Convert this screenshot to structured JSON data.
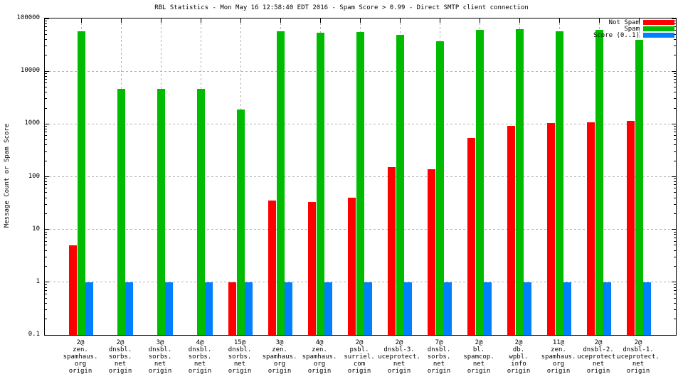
{
  "chart_data": {
    "type": "bar",
    "title": "RBL Statistics - Mon May 16 12:58:40 EDT 2016 - Spam Score > 0.99 - Direct SMTP client connection",
    "ylabel": "Message Count or Spam Score",
    "xlabel": "",
    "yscale": "log",
    "ylim": [
      0.1,
      100000
    ],
    "grid": true,
    "legend_position": "top-right",
    "background_color": "#ffffff",
    "grid_color": "#b3b3b3",
    "axis_color": "#000000",
    "yticks": [
      {
        "value": 100000,
        "label": "100000"
      },
      {
        "value": 10000,
        "label": "10000"
      },
      {
        "value": 1000,
        "label": "1000"
      },
      {
        "value": 100,
        "label": "100"
      },
      {
        "value": 10,
        "label": "10"
      },
      {
        "value": 1,
        "label": "1"
      },
      {
        "value": 0.1,
        "label": "0.1"
      }
    ],
    "gridline_values": [
      10000,
      1000,
      100,
      10,
      1
    ],
    "categories": [
      [
        "2@",
        "zen.",
        "spamhaus.",
        "org",
        "origin"
      ],
      [
        "2@",
        "dnsbl.",
        "sorbs.",
        "net",
        "origin"
      ],
      [
        "3@",
        "dnsbl.",
        "sorbs.",
        "net",
        "origin"
      ],
      [
        "4@",
        "dnsbl.",
        "sorbs.",
        "net",
        "origin"
      ],
      [
        "15@",
        "dnsbl.",
        "sorbs.",
        "net",
        "origin"
      ],
      [
        "3@",
        "zen.",
        "spamhaus.",
        "org",
        "origin"
      ],
      [
        "4@",
        "zen.",
        "spamhaus.",
        "org",
        "origin"
      ],
      [
        "2@",
        "psbl.",
        "surriel.",
        "com",
        "origin"
      ],
      [
        "2@",
        "dnsbl-3.",
        "uceprotect.",
        "net",
        "origin"
      ],
      [
        "7@",
        "dnsbl.",
        "sorbs.",
        "net",
        "origin"
      ],
      [
        "2@",
        "bl.",
        "spamcop.",
        "net",
        "origin"
      ],
      [
        "2@",
        "db.",
        "wpbl.",
        "info",
        "origin"
      ],
      [
        "11@",
        "zen.",
        "spamhaus.",
        "org",
        "origin"
      ],
      [
        "2@",
        "dnsbl-2.",
        "uceprotect.",
        "net",
        "origin"
      ],
      [
        "2@",
        "dnsbl-1.",
        "uceprotect.",
        "net",
        "origin"
      ]
    ],
    "series": [
      {
        "name": "Not Spam",
        "color": "#ff0000",
        "values": [
          5,
          null,
          null,
          null,
          1,
          35,
          33,
          40,
          150,
          140,
          550,
          920,
          1040,
          1080,
          1150
        ]
      },
      {
        "name": "Spam",
        "color": "#00bb00",
        "values": [
          57000,
          4600,
          4700,
          4600,
          1900,
          57000,
          54000,
          55000,
          49000,
          37000,
          60000,
          62000,
          58000,
          61000,
          40000
        ]
      },
      {
        "name": "Score (0..1)",
        "color": "#0080ff",
        "values": [
          1,
          1,
          1,
          1,
          1,
          1,
          1,
          1,
          1,
          1,
          1,
          1,
          1,
          1,
          1
        ]
      }
    ]
  }
}
